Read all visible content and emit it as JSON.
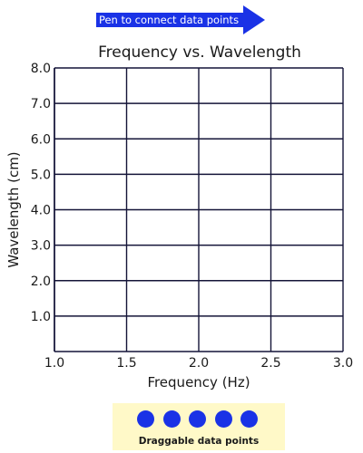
{
  "toolbar": {
    "pen_label": "Pen to connect data points",
    "pen_color": "#1a32e6"
  },
  "chart_data": {
    "type": "scatter",
    "title": "Frequency vs. Wavelength",
    "xlabel": "Frequency (Hz)",
    "ylabel": "Wavelength (cm)",
    "xlim": [
      1.0,
      3.0
    ],
    "ylim": [
      0.0,
      8.0
    ],
    "xticks": [
      "1.0",
      "1.5",
      "2.0",
      "2.5",
      "3.0"
    ],
    "yticks": [
      "1.0",
      "2.0",
      "3.0",
      "4.0",
      "5.0",
      "6.0",
      "7.0",
      "8.0"
    ],
    "grid": true,
    "series": []
  },
  "tray": {
    "label": "Draggable data points",
    "point_count": 5,
    "color": "#1a32e6",
    "background": "#fff9c8"
  }
}
